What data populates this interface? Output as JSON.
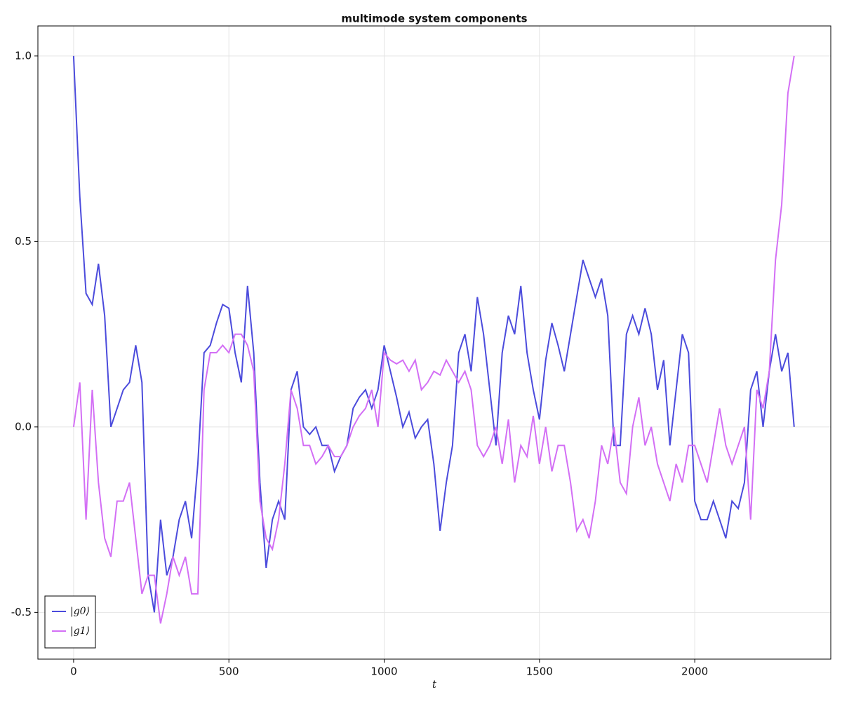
{
  "chart_data": {
    "type": "line",
    "title": "multimode system components",
    "x_label": "t",
    "x": [
      0,
      20,
      40,
      60,
      80,
      100,
      120,
      140,
      160,
      180,
      200,
      220,
      240,
      260,
      280,
      300,
      320,
      340,
      360,
      380,
      400,
      420,
      440,
      460,
      480,
      500,
      520,
      540,
      560,
      580,
      600,
      620,
      640,
      660,
      680,
      700,
      720,
      740,
      760,
      780,
      800,
      820,
      840,
      860,
      880,
      900,
      920,
      940,
      960,
      980,
      1000,
      1020,
      1040,
      1060,
      1080,
      1100,
      1120,
      1140,
      1160,
      1180,
      1200,
      1220,
      1240,
      1260,
      1280,
      1300,
      1320,
      1340,
      1360,
      1380,
      1400,
      1420,
      1440,
      1460,
      1480,
      1500,
      1520,
      1540,
      1560,
      1580,
      1600,
      1620,
      1640,
      1660,
      1680,
      1700,
      1720,
      1740,
      1760,
      1780,
      1800,
      1820,
      1840,
      1860,
      1880,
      1900,
      1920,
      1940,
      1960,
      1980,
      2000,
      2020,
      2040,
      2060,
      2080,
      2100,
      2120,
      2140,
      2160,
      2180,
      2200,
      2220,
      2240,
      2260,
      2280,
      2300,
      2320
    ],
    "series": [
      {
        "name": "|g0⟩",
        "color": "#4b4bdc",
        "values": [
          1.0,
          0.62,
          0.36,
          0.33,
          0.44,
          0.3,
          0.0,
          0.05,
          0.1,
          0.12,
          0.22,
          0.12,
          -0.4,
          -0.5,
          -0.25,
          -0.4,
          -0.35,
          -0.25,
          -0.2,
          -0.3,
          -0.1,
          0.2,
          0.22,
          0.28,
          0.33,
          0.32,
          0.2,
          0.12,
          0.38,
          0.2,
          -0.15,
          -0.38,
          -0.25,
          -0.2,
          -0.25,
          0.1,
          0.15,
          0.0,
          -0.02,
          0.0,
          -0.05,
          -0.05,
          -0.12,
          -0.08,
          -0.05,
          0.05,
          0.08,
          0.1,
          0.05,
          0.1,
          0.22,
          0.15,
          0.08,
          0.0,
          0.04,
          -0.03,
          0.0,
          0.02,
          -0.1,
          -0.28,
          -0.15,
          -0.05,
          0.2,
          0.25,
          0.15,
          0.35,
          0.25,
          0.1,
          -0.05,
          0.2,
          0.3,
          0.25,
          0.38,
          0.2,
          0.1,
          0.02,
          0.18,
          0.28,
          0.22,
          0.15,
          0.25,
          0.35,
          0.45,
          0.4,
          0.35,
          0.4,
          0.3,
          -0.05,
          -0.05,
          0.25,
          0.3,
          0.25,
          0.32,
          0.25,
          0.1,
          0.18,
          -0.05,
          0.1,
          0.25,
          0.2,
          -0.2,
          -0.25,
          -0.25,
          -0.2,
          -0.25,
          -0.3,
          -0.2,
          -0.22,
          -0.15,
          0.1,
          0.15,
          0.0,
          0.15,
          0.25,
          0.15,
          0.2,
          0.0
        ]
      },
      {
        "name": "|g1⟩",
        "color": "#d36ff5",
        "values": [
          0.0,
          0.12,
          -0.25,
          0.1,
          -0.15,
          -0.3,
          -0.35,
          -0.2,
          -0.2,
          -0.15,
          -0.3,
          -0.45,
          -0.4,
          -0.4,
          -0.53,
          -0.45,
          -0.35,
          -0.4,
          -0.35,
          -0.45,
          -0.45,
          0.1,
          0.2,
          0.2,
          0.22,
          0.2,
          0.25,
          0.25,
          0.22,
          0.15,
          -0.2,
          -0.3,
          -0.33,
          -0.25,
          -0.1,
          0.1,
          0.05,
          -0.05,
          -0.05,
          -0.1,
          -0.08,
          -0.05,
          -0.08,
          -0.08,
          -0.05,
          0.0,
          0.03,
          0.05,
          0.1,
          0.0,
          0.2,
          0.18,
          0.17,
          0.18,
          0.15,
          0.18,
          0.1,
          0.12,
          0.15,
          0.14,
          0.18,
          0.15,
          0.12,
          0.15,
          0.1,
          -0.05,
          -0.08,
          -0.05,
          0.0,
          -0.1,
          0.02,
          -0.15,
          -0.05,
          -0.08,
          0.03,
          -0.1,
          0.0,
          -0.12,
          -0.05,
          -0.05,
          -0.15,
          -0.28,
          -0.25,
          -0.3,
          -0.2,
          -0.05,
          -0.1,
          0.0,
          -0.15,
          -0.18,
          0.0,
          0.08,
          -0.05,
          0.0,
          -0.1,
          -0.15,
          -0.2,
          -0.1,
          -0.15,
          -0.05,
          -0.05,
          -0.1,
          -0.15,
          -0.05,
          0.05,
          -0.05,
          -0.1,
          -0.05,
          0.0,
          -0.25,
          0.1,
          0.05,
          0.15,
          0.45,
          0.6,
          0.9,
          1.0
        ]
      }
    ],
    "xlim": [
      -115,
      2438
    ],
    "xticks": [
      0,
      500,
      1000,
      1500,
      2000
    ],
    "ylim": [
      -0.626,
      1.081
    ],
    "yticks": [
      {
        "value": -0.5,
        "label": "-0.5"
      },
      {
        "value": 0,
        "label": "0.0"
      },
      {
        "value": 0.5,
        "label": "0.5"
      },
      {
        "value": 1,
        "label": "1.0"
      }
    ],
    "grid": true,
    "legend": "lower left"
  }
}
